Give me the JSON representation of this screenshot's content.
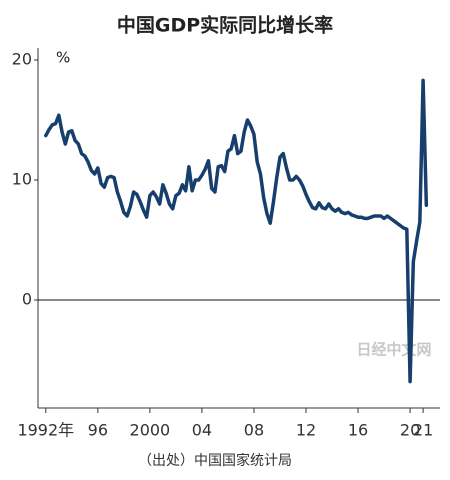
{
  "chart_data": {
    "type": "line",
    "title": "中国GDP实际同比增长率",
    "y_unit": "%",
    "source": "（出处）中国国家统计局",
    "watermark": "日经中文网",
    "x": [
      1992,
      1992.25,
      1992.5,
      1992.75,
      1993,
      1993.25,
      1993.5,
      1993.75,
      1994,
      1994.25,
      1994.5,
      1994.75,
      1995,
      1995.25,
      1995.5,
      1995.75,
      1996,
      1996.25,
      1996.5,
      1996.75,
      1997,
      1997.25,
      1997.5,
      1997.75,
      1998,
      1998.25,
      1998.5,
      1998.75,
      1999,
      1999.25,
      1999.5,
      1999.75,
      2000,
      2000.25,
      2000.5,
      2000.75,
      2001,
      2001.25,
      2001.5,
      2001.75,
      2002,
      2002.25,
      2002.5,
      2002.75,
      2003,
      2003.25,
      2003.5,
      2003.75,
      2004,
      2004.25,
      2004.5,
      2004.75,
      2005,
      2005.25,
      2005.5,
      2005.75,
      2006,
      2006.25,
      2006.5,
      2006.75,
      2007,
      2007.25,
      2007.5,
      2007.75,
      2008,
      2008.25,
      2008.5,
      2008.75,
      2009,
      2009.25,
      2009.5,
      2009.75,
      2010,
      2010.25,
      2010.5,
      2010.75,
      2011,
      2011.25,
      2011.5,
      2011.75,
      2012,
      2012.25,
      2012.5,
      2012.75,
      2013,
      2013.25,
      2013.5,
      2013.75,
      2014,
      2014.25,
      2014.5,
      2014.75,
      2015,
      2015.25,
      2015.5,
      2015.75,
      2016,
      2016.25,
      2016.5,
      2016.75,
      2017,
      2017.25,
      2017.5,
      2017.75,
      2018,
      2018.25,
      2018.5,
      2018.75,
      2019,
      2019.25,
      2019.5,
      2019.75,
      2020,
      2020.25,
      2020.5,
      2020.75,
      2021,
      2021.25
    ],
    "series": [
      {
        "name": "GDP",
        "color": "#173f6d",
        "values": [
          13.7,
          14.2,
          14.6,
          14.7,
          15.4,
          14.0,
          13.0,
          14.0,
          14.1,
          13.3,
          13.0,
          12.2,
          12.0,
          11.5,
          10.8,
          10.5,
          11.0,
          9.7,
          9.4,
          10.2,
          10.3,
          10.2,
          9.0,
          8.2,
          7.3,
          7.0,
          7.8,
          9.0,
          8.8,
          8.2,
          7.5,
          6.9,
          8.7,
          9.0,
          8.6,
          8.0,
          9.6,
          8.9,
          8.0,
          7.6,
          8.7,
          8.9,
          9.6,
          9.1,
          11.1,
          9.1,
          10.0,
          10.0,
          10.4,
          10.9,
          11.6,
          9.3,
          9.0,
          11.1,
          11.2,
          10.7,
          12.4,
          12.6,
          13.7,
          12.2,
          12.4,
          14.0,
          15.0,
          14.5,
          13.8,
          11.5,
          10.5,
          8.5,
          7.2,
          6.4,
          8.2,
          10.2,
          11.9,
          12.2,
          11.0,
          10.0,
          10.0,
          10.3,
          10.0,
          9.5,
          8.8,
          8.2,
          7.7,
          7.6,
          8.1,
          7.7,
          7.6,
          8.0,
          7.6,
          7.4,
          7.6,
          7.3,
          7.2,
          7.3,
          7.1,
          7.0,
          6.9,
          6.9,
          6.8,
          6.8,
          6.9,
          7.0,
          7.0,
          7.0,
          6.8,
          7.0,
          6.8,
          6.6,
          6.4,
          6.2,
          6.0,
          5.9,
          -6.8,
          3.2,
          4.9,
          6.5,
          18.3,
          7.9
        ]
      }
    ],
    "xlim": [
      1991.4,
      2022.3
    ],
    "ylim": [
      -9,
      21
    ],
    "xticks": [
      {
        "value": 1992,
        "label": "1992年"
      },
      {
        "value": 1996,
        "label": "96"
      },
      2000,
      {
        "value": 2004,
        "label": "04"
      },
      {
        "value": 2008,
        "label": "08"
      },
      {
        "value": 2012,
        "label": "12"
      },
      {
        "value": 2016,
        "label": "16"
      },
      {
        "value": 2020,
        "label": "20"
      },
      {
        "value": 2021,
        "label": "21"
      }
    ],
    "yticks": [
      0,
      10,
      20
    ]
  }
}
